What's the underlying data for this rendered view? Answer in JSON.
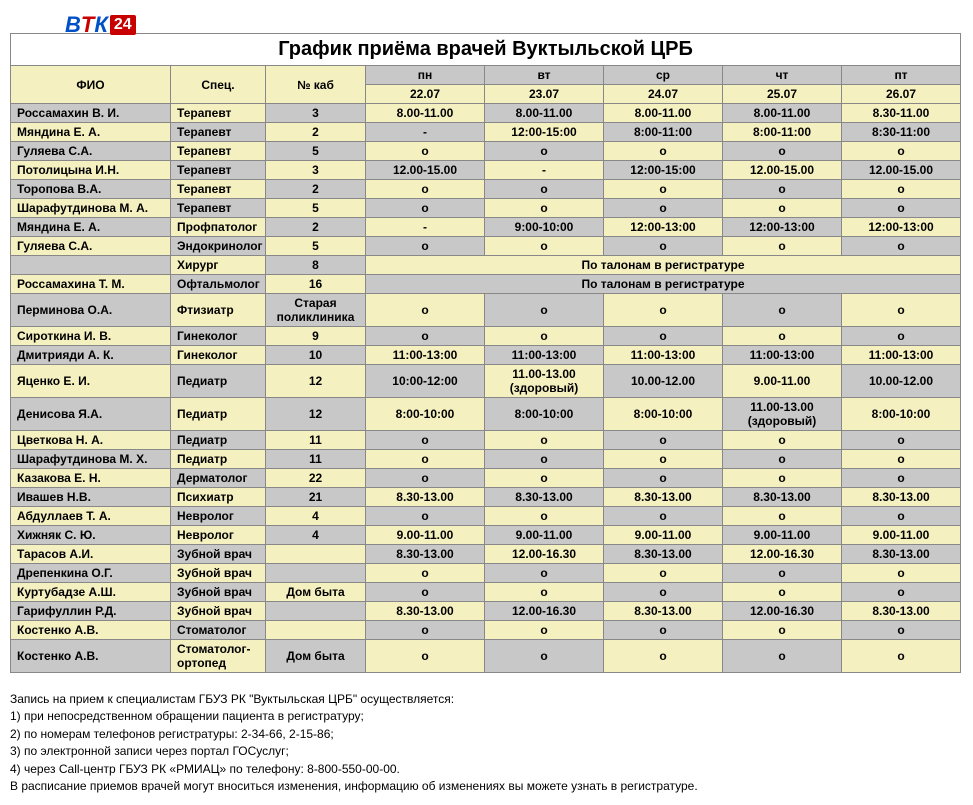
{
  "title": "График приёма врачей Вуктыльской ЦРБ",
  "logo": {
    "letters": [
      "В",
      "Т",
      "К"
    ],
    "badge": "24"
  },
  "headers": {
    "name": "ФИО",
    "spec": "Спец.",
    "room": "№ каб",
    "days": [
      "пн",
      "вт",
      "ср",
      "чт",
      "пт"
    ],
    "dates": [
      "22.07",
      "23.07",
      "24.07",
      "25.07",
      "26.07"
    ]
  },
  "byTickets": "По талонам в регистратуре",
  "rows": [
    {
      "s": "gray",
      "n": "Россамахин В. И.",
      "sp": "Терапевт",
      "r": "3",
      "c": [
        "8.00-11.00",
        "8.00-11.00",
        "8.00-11.00",
        "8.00-11.00",
        "8.30-11.00"
      ]
    },
    {
      "s": "yel",
      "n": "Мяндина Е. А.",
      "sp": "Терапевт",
      "r": "2",
      "c": [
        "-",
        "12:00-15:00",
        "8:00-11:00",
        "8:00-11:00",
        "8:30-11:00"
      ]
    },
    {
      "s": "gray",
      "n": "Гуляева С.А.",
      "sp": "Терапевт",
      "r": "5",
      "c": [
        "о",
        "о",
        "о",
        "о",
        "о"
      ]
    },
    {
      "s": "yel",
      "n": "Потолицына И.Н.",
      "sp": "Терапевт",
      "r": "3",
      "c": [
        "12.00-15.00",
        "-",
        "12:00-15:00",
        "12.00-15.00",
        "12.00-15.00"
      ]
    },
    {
      "s": "gray",
      "n": "Торопова В.А.",
      "sp": "Терапевт",
      "r": "2",
      "c": [
        "о",
        "о",
        "о",
        "о",
        "о"
      ]
    },
    {
      "s": "yel",
      "n": "Шарафутдинова М. А.",
      "sp": "Терапевт",
      "r": "5",
      "c": [
        "о",
        "о",
        "о",
        "о",
        "о"
      ]
    },
    {
      "s": "gray",
      "n": "Мяндина Е. А.",
      "sp": "Профпатолог",
      "r": "2",
      "c": [
        "-",
        "9:00-10:00",
        "12:00-13:00",
        "12:00-13:00",
        "12:00-13:00"
      ]
    },
    {
      "s": "yel",
      "n": "Гуляева С.А.",
      "sp": "Эндокринолог",
      "r": "5",
      "c": [
        "о",
        "о",
        "о",
        "о",
        "о"
      ]
    },
    {
      "s": "gray",
      "n": "",
      "sp": "Хирург",
      "r": "8",
      "tickets": true
    },
    {
      "s": "yel",
      "n": "Россамахина Т. М.",
      "sp": "Офтальмолог",
      "r": "16",
      "tickets": true
    },
    {
      "s": "gray",
      "n": "Перминова О.А.",
      "sp": "Фтизиатр",
      "r": "Старая поликлиника",
      "c": [
        "о",
        "о",
        "о",
        "о",
        "о"
      ]
    },
    {
      "s": "yel",
      "n": "Сироткина И. В.",
      "sp": "Гинеколог",
      "r": "9",
      "c": [
        "о",
        "о",
        "о",
        "о",
        "о"
      ]
    },
    {
      "s": "gray",
      "n": "Дмитрияди А. К.",
      "sp": "Гинеколог",
      "r": "10",
      "c": [
        "11:00-13:00",
        "11:00-13:00",
        "11:00-13:00",
        "11:00-13:00",
        "11:00-13:00"
      ]
    },
    {
      "s": "yel",
      "n": "Яценко Е. И.",
      "sp": "Педиатр",
      "r": "12",
      "c": [
        "10:00-12:00",
        "11.00-13.00 (здоровый)",
        "10.00-12.00",
        "9.00-11.00",
        "10.00-12.00"
      ]
    },
    {
      "s": "gray",
      "n": "Денисова Я.А.",
      "sp": "Педиатр",
      "r": "12",
      "c": [
        "8:00-10:00",
        "8:00-10:00",
        "8:00-10:00",
        "11.00-13.00 (здоровый)",
        "8:00-10:00"
      ]
    },
    {
      "s": "yel",
      "n": "Цветкова Н. А.",
      "sp": "Педиатр",
      "r": "11",
      "c": [
        "о",
        "о",
        "о",
        "о",
        "о"
      ]
    },
    {
      "s": "gray",
      "n": "Шарафутдинова М. Х.",
      "sp": "Педиатр",
      "r": "11",
      "c": [
        "о",
        "о",
        "о",
        "о",
        "о"
      ]
    },
    {
      "s": "yel",
      "n": "Казакова Е. Н.",
      "sp": "Дерматолог",
      "r": "22",
      "c": [
        "о",
        "о",
        "о",
        "о",
        "о"
      ]
    },
    {
      "s": "gray",
      "n": "Ивашев Н.В.",
      "sp": "Психиатр",
      "r": "21",
      "c": [
        "8.30-13.00",
        "8.30-13.00",
        "8.30-13.00",
        "8.30-13.00",
        "8.30-13.00"
      ]
    },
    {
      "s": "yel",
      "n": "Абдуллаев Т. А.",
      "sp": "Невролог",
      "r": "4",
      "c": [
        "о",
        "о",
        "о",
        "о",
        "о"
      ]
    },
    {
      "s": "gray",
      "n": "Хижняк С. Ю.",
      "sp": "Невролог",
      "r": "4",
      "c": [
        "9.00-11.00",
        "9.00-11.00",
        "9.00-11.00",
        "9.00-11.00",
        "9.00-11.00"
      ]
    },
    {
      "s": "yel",
      "n": "Тарасов А.И.",
      "sp": "Зубной врач",
      "r": "",
      "c": [
        "8.30-13.00",
        "12.00-16.30",
        "8.30-13.00",
        "12.00-16.30",
        "8.30-13.00"
      ]
    },
    {
      "s": "gray",
      "n": "Дрепенкина О.Г.",
      "sp": "Зубной врач",
      "r": "",
      "c": [
        "о",
        "о",
        "о",
        "о",
        "о"
      ]
    },
    {
      "s": "yel",
      "n": "Куртубадзе А.Ш.",
      "sp": "Зубной врач",
      "r": "Дом быта",
      "c": [
        "о",
        "о",
        "о",
        "о",
        "о"
      ]
    },
    {
      "s": "gray",
      "n": "Гарифуллин Р.Д.",
      "sp": "Зубной врач",
      "r": "",
      "c": [
        "8.30-13.00",
        "12.00-16.30",
        "8.30-13.00",
        "12.00-16.30",
        "8.30-13.00"
      ]
    },
    {
      "s": "yel",
      "n": "Костенко А.В.",
      "sp": "Стоматолог",
      "r": "",
      "c": [
        "о",
        "о",
        "о",
        "о",
        "о"
      ]
    },
    {
      "s": "gray",
      "n": "Костенко А.В.",
      "sp": "Стоматолог-ортопед",
      "r": "Дом быта",
      "c": [
        "о",
        "о",
        "о",
        "о",
        "о"
      ]
    }
  ],
  "notes": [
    "Запись на прием к специалистам ГБУЗ РК \"Вуктыльская ЦРБ\" осуществляется:",
    "1) при непосредственном обращении пациента в регистратуру;",
    "2) по номерам телефонов регистратуры: 2-34-66, 2-15-86;",
    "3) по электронной записи через портал ГОСуслуг;",
    "4) через Call-центр ГБУЗ РК «РМИАЦ» по телефону: 8-800-550-00-00.",
    "В расписание приемов врачей могут вноситься изменения, информацию об изменениях вы можете узнать в регистратуре."
  ],
  "colors": {
    "yellow": "#f5f0c0",
    "gray": "#c8c8c8",
    "border": "#888"
  }
}
